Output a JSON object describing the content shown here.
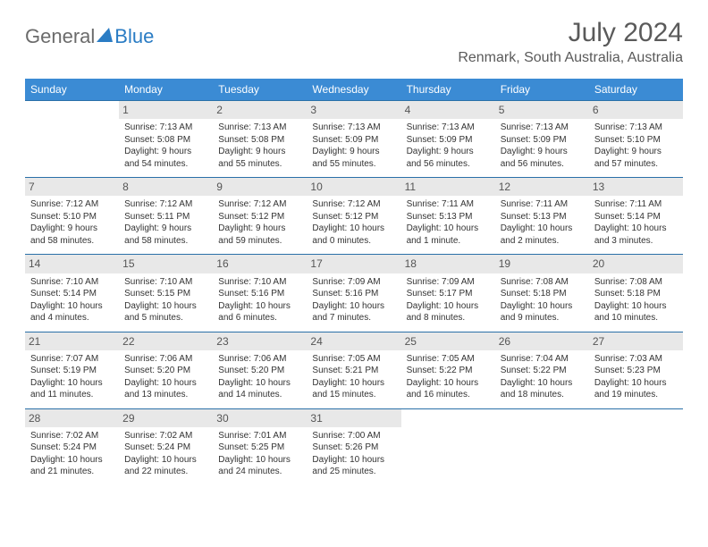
{
  "logo": {
    "part1": "General",
    "part2": "Blue"
  },
  "title": "July 2024",
  "location": "Renmark, South Australia, Australia",
  "colors": {
    "header_bg": "#3b8bd4",
    "header_text": "#ffffff",
    "day_num_bg": "#e8e8e8",
    "border": "#2a70a8",
    "logo_gray": "#6b6b6b",
    "logo_blue": "#2a7cc4"
  },
  "weekdays": [
    "Sunday",
    "Monday",
    "Tuesday",
    "Wednesday",
    "Thursday",
    "Friday",
    "Saturday"
  ],
  "first_day_index": 1,
  "days": [
    {
      "n": 1,
      "sr": "7:13 AM",
      "ss": "5:08 PM",
      "dl": "9 hours and 54 minutes."
    },
    {
      "n": 2,
      "sr": "7:13 AM",
      "ss": "5:08 PM",
      "dl": "9 hours and 55 minutes."
    },
    {
      "n": 3,
      "sr": "7:13 AM",
      "ss": "5:09 PM",
      "dl": "9 hours and 55 minutes."
    },
    {
      "n": 4,
      "sr": "7:13 AM",
      "ss": "5:09 PM",
      "dl": "9 hours and 56 minutes."
    },
    {
      "n": 5,
      "sr": "7:13 AM",
      "ss": "5:09 PM",
      "dl": "9 hours and 56 minutes."
    },
    {
      "n": 6,
      "sr": "7:13 AM",
      "ss": "5:10 PM",
      "dl": "9 hours and 57 minutes."
    },
    {
      "n": 7,
      "sr": "7:12 AM",
      "ss": "5:10 PM",
      "dl": "9 hours and 58 minutes."
    },
    {
      "n": 8,
      "sr": "7:12 AM",
      "ss": "5:11 PM",
      "dl": "9 hours and 58 minutes."
    },
    {
      "n": 9,
      "sr": "7:12 AM",
      "ss": "5:12 PM",
      "dl": "9 hours and 59 minutes."
    },
    {
      "n": 10,
      "sr": "7:12 AM",
      "ss": "5:12 PM",
      "dl": "10 hours and 0 minutes."
    },
    {
      "n": 11,
      "sr": "7:11 AM",
      "ss": "5:13 PM",
      "dl": "10 hours and 1 minute."
    },
    {
      "n": 12,
      "sr": "7:11 AM",
      "ss": "5:13 PM",
      "dl": "10 hours and 2 minutes."
    },
    {
      "n": 13,
      "sr": "7:11 AM",
      "ss": "5:14 PM",
      "dl": "10 hours and 3 minutes."
    },
    {
      "n": 14,
      "sr": "7:10 AM",
      "ss": "5:14 PM",
      "dl": "10 hours and 4 minutes."
    },
    {
      "n": 15,
      "sr": "7:10 AM",
      "ss": "5:15 PM",
      "dl": "10 hours and 5 minutes."
    },
    {
      "n": 16,
      "sr": "7:10 AM",
      "ss": "5:16 PM",
      "dl": "10 hours and 6 minutes."
    },
    {
      "n": 17,
      "sr": "7:09 AM",
      "ss": "5:16 PM",
      "dl": "10 hours and 7 minutes."
    },
    {
      "n": 18,
      "sr": "7:09 AM",
      "ss": "5:17 PM",
      "dl": "10 hours and 8 minutes."
    },
    {
      "n": 19,
      "sr": "7:08 AM",
      "ss": "5:18 PM",
      "dl": "10 hours and 9 minutes."
    },
    {
      "n": 20,
      "sr": "7:08 AM",
      "ss": "5:18 PM",
      "dl": "10 hours and 10 minutes."
    },
    {
      "n": 21,
      "sr": "7:07 AM",
      "ss": "5:19 PM",
      "dl": "10 hours and 11 minutes."
    },
    {
      "n": 22,
      "sr": "7:06 AM",
      "ss": "5:20 PM",
      "dl": "10 hours and 13 minutes."
    },
    {
      "n": 23,
      "sr": "7:06 AM",
      "ss": "5:20 PM",
      "dl": "10 hours and 14 minutes."
    },
    {
      "n": 24,
      "sr": "7:05 AM",
      "ss": "5:21 PM",
      "dl": "10 hours and 15 minutes."
    },
    {
      "n": 25,
      "sr": "7:05 AM",
      "ss": "5:22 PM",
      "dl": "10 hours and 16 minutes."
    },
    {
      "n": 26,
      "sr": "7:04 AM",
      "ss": "5:22 PM",
      "dl": "10 hours and 18 minutes."
    },
    {
      "n": 27,
      "sr": "7:03 AM",
      "ss": "5:23 PM",
      "dl": "10 hours and 19 minutes."
    },
    {
      "n": 28,
      "sr": "7:02 AM",
      "ss": "5:24 PM",
      "dl": "10 hours and 21 minutes."
    },
    {
      "n": 29,
      "sr": "7:02 AM",
      "ss": "5:24 PM",
      "dl": "10 hours and 22 minutes."
    },
    {
      "n": 30,
      "sr": "7:01 AM",
      "ss": "5:25 PM",
      "dl": "10 hours and 24 minutes."
    },
    {
      "n": 31,
      "sr": "7:00 AM",
      "ss": "5:26 PM",
      "dl": "10 hours and 25 minutes."
    }
  ],
  "labels": {
    "sunrise": "Sunrise:",
    "sunset": "Sunset:",
    "daylight": "Daylight:"
  }
}
